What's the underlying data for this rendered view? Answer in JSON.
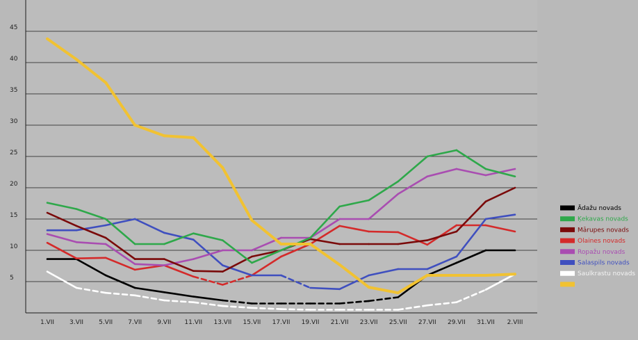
{
  "chart_data": {
    "type": "line",
    "title": "",
    "xlabel": "",
    "ylabel": "",
    "ylim": [
      0,
      50
    ],
    "grid": true,
    "legend_position": "right",
    "categories": [
      "1.VII",
      "3.VII",
      "5.VII",
      "7.VII",
      "9.VII",
      "11.VII",
      "13.VII",
      "15.VII",
      "17.VII",
      "19.VII",
      "21.VII",
      "23.VII",
      "25.VII",
      "27.VII",
      "29.VII",
      "31.VII",
      "2.VIII"
    ],
    "y_ticks": [
      "5",
      "10",
      "15",
      "20",
      "25",
      "30",
      "35",
      "40",
      "45"
    ],
    "y_tick_values": [
      5,
      10,
      15,
      20,
      25,
      30,
      35,
      40,
      45
    ],
    "series": [
      {
        "name": "Ādažu novads",
        "color": "#000000",
        "values": [
          8.6,
          8.6,
          6.0,
          4.0,
          3.3,
          2.6,
          2.0,
          1.5,
          1.5,
          1.5,
          1.5,
          1.9,
          2.5,
          6.0,
          8.0,
          10.0,
          10.0
        ],
        "dashed": [
          6,
          7,
          8,
          9,
          10,
          11
        ]
      },
      {
        "name": "Ķekavas novads",
        "color": "#2ea84a",
        "values": [
          17.6,
          16.6,
          15.0,
          11.0,
          11.0,
          12.7,
          11.6,
          8.0,
          10.0,
          12.0,
          17.0,
          18.0,
          21.0,
          25.0,
          26.0,
          23.0,
          21.8
        ],
        "dashed": []
      },
      {
        "name": "Mārupes novads",
        "color": "#7a0a0a",
        "values": [
          16.0,
          13.9,
          12.0,
          8.6,
          8.6,
          6.7,
          6.6,
          9.0,
          10.0,
          11.8,
          11.0,
          11.0,
          11.0,
          11.6,
          13.0,
          17.8,
          20.0
        ],
        "dashed": []
      },
      {
        "name": "Olaines novads",
        "color": "#d42a2a",
        "values": [
          11.2,
          8.7,
          8.8,
          6.9,
          7.6,
          5.8,
          4.5,
          6.0,
          9.0,
          11.0,
          13.9,
          13.0,
          12.9,
          10.9,
          14.0,
          14.0,
          13.0
        ],
        "dashed": [
          5,
          6
        ]
      },
      {
        "name": "Ropažu novads",
        "color": "#a94db1",
        "values": [
          12.6,
          11.3,
          11.0,
          7.8,
          7.6,
          8.6,
          10.0,
          10.0,
          12.0,
          12.0,
          15.0,
          15.0,
          19.0,
          21.8,
          23.0,
          22.0,
          23.0
        ],
        "dashed": []
      },
      {
        "name": "Salaspils novads",
        "color": "#3f4fbf",
        "values": [
          13.2,
          13.2,
          14.0,
          15.0,
          12.8,
          11.7,
          7.6,
          6.0,
          6.0,
          4.0,
          3.8,
          6.0,
          7.0,
          7.0,
          9.0,
          15.0,
          15.7
        ],
        "dashed": [
          8
        ]
      },
      {
        "name": "Saulkrastu novads",
        "color": "#ffffff",
        "values": [
          6.6,
          4.0,
          3.2,
          2.8,
          2.0,
          1.7,
          1.1,
          0.8,
          0.6,
          0.5,
          0.5,
          0.5,
          0.5,
          1.2,
          1.7,
          3.7,
          6.2
        ],
        "dashed": [
          1,
          2,
          3,
          4,
          5,
          6,
          7,
          8,
          9,
          10,
          11,
          12,
          13,
          14
        ]
      },
      {
        "name": "",
        "color": "#f1c232",
        "values": [
          43.8,
          40.5,
          36.8,
          30.0,
          28.3,
          28.0,
          23.2,
          14.8,
          11.0,
          11.0,
          7.7,
          4.1,
          3.2,
          6.0,
          6.0,
          6.0,
          6.2
        ],
        "dashed": []
      }
    ]
  }
}
